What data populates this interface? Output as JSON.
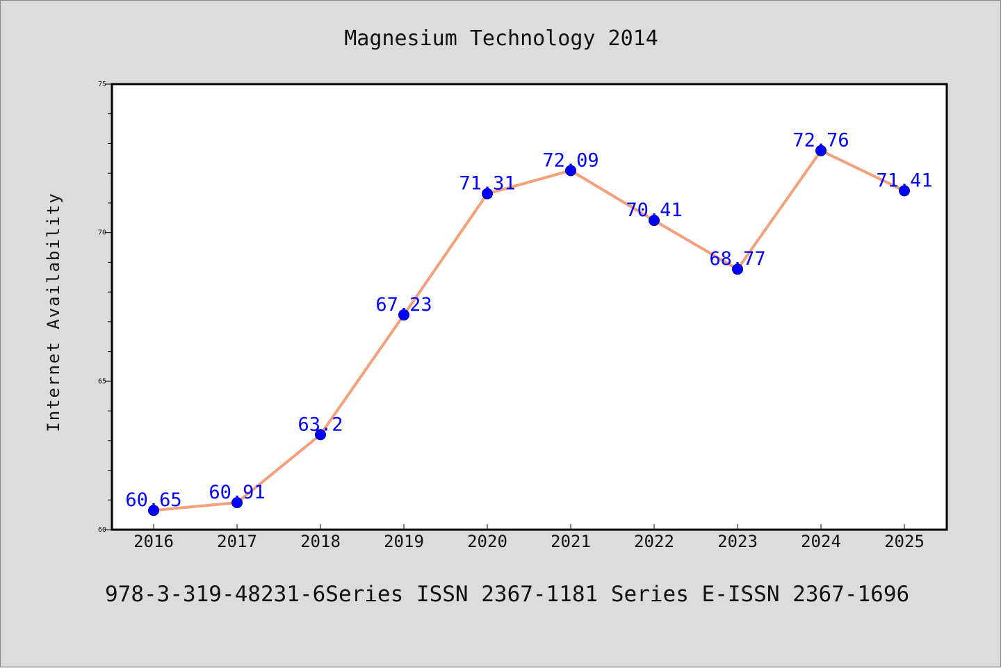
{
  "chart_data": {
    "type": "line",
    "title": "Magnesium Technology 2014",
    "xlabel": "",
    "ylabel": "Internet Availability",
    "categories": [
      "2016",
      "2017",
      "2018",
      "2019",
      "2020",
      "2021",
      "2022",
      "2023",
      "2024",
      "2025"
    ],
    "values": [
      60.65,
      60.91,
      63.2,
      67.23,
      71.31,
      72.09,
      70.41,
      68.77,
      72.76,
      71.41
    ],
    "data_labels": [
      "60.65",
      "60.91",
      "63.2",
      "67.23",
      "71.31",
      "72.09",
      "70.41",
      "68.77",
      "72.76",
      "71.41"
    ],
    "ylim": [
      60,
      75
    ],
    "yticks": [
      "60",
      "65",
      "70",
      "75"
    ],
    "grid": false,
    "line_color": "#f4a07c",
    "marker_color": "#0000ff",
    "label_color": "#0000ff",
    "background": "#dcdcdc",
    "plot_background": "#ffffff"
  },
  "footer": "978-3-319-48231-6Series ISSN 2367-1181 Series E-ISSN 2367-1696"
}
